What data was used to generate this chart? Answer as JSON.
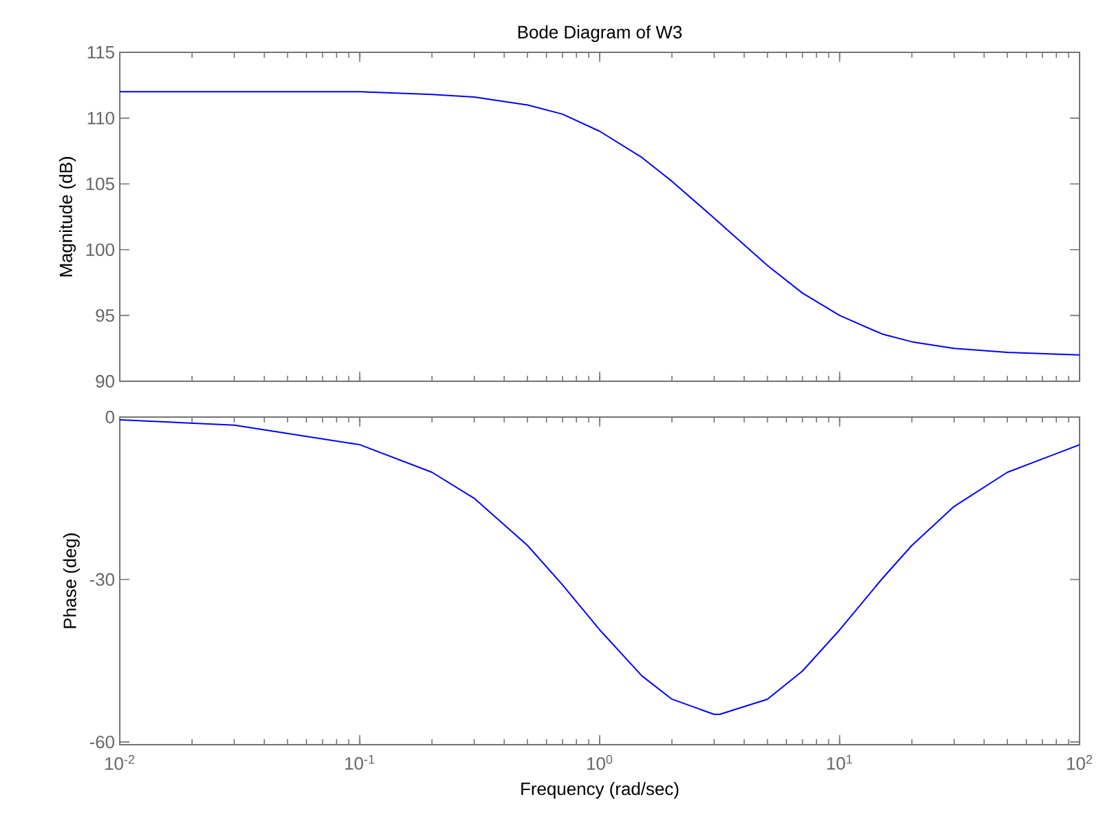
{
  "chart_data": [
    {
      "type": "line",
      "title": "Bode Diagram of W3",
      "ylabel": "Magnitude (dB)",
      "log": "x",
      "tick_labels": "y",
      "color": "#0000ff",
      "x": [
        0.01,
        0.03,
        0.1,
        0.2,
        0.3,
        0.5,
        0.7,
        1,
        1.5,
        2,
        3,
        5,
        7,
        10,
        15,
        20,
        30,
        50,
        100
      ],
      "values": [
        112.0,
        112.0,
        112.0,
        111.8,
        111.6,
        111.0,
        110.3,
        109.0,
        107.0,
        105.2,
        102.4,
        98.8,
        96.7,
        95.0,
        93.6,
        93.0,
        92.5,
        92.2,
        92.0
      ],
      "xlim": [
        0.01,
        100
      ],
      "ylim": [
        90,
        115
      ],
      "xticks": [
        0.01,
        0.1,
        1,
        10,
        100
      ],
      "yticks": [
        90,
        95,
        100,
        105,
        110,
        115
      ]
    },
    {
      "type": "line",
      "xlabel": "Frequency (rad/sec)",
      "ylabel": "Phase (deg)",
      "log": "x",
      "color": "#0000ff",
      "x": [
        0.01,
        0.03,
        0.1,
        0.2,
        0.3,
        0.5,
        0.7,
        1,
        1.5,
        2,
        3,
        3.16,
        5,
        7,
        10,
        15,
        20,
        30,
        50,
        100
      ],
      "values": [
        -0.5,
        -1.5,
        -5.1,
        -10.2,
        -15.0,
        -23.7,
        -31.0,
        -39.3,
        -47.8,
        -52.1,
        -54.9,
        -54.9,
        -52.1,
        -46.9,
        -39.3,
        -29.9,
        -23.7,
        -16.5,
        -10.2,
        -5.1
      ],
      "xlim": [
        0.01,
        100
      ],
      "ylim": [
        -60.5,
        0
      ],
      "xticks": [
        {
          "value": 0.01,
          "label": "10$^{-2}$"
        },
        {
          "value": 0.1,
          "label": "10$^{-1}$"
        },
        {
          "value": 1,
          "label": "10$^{0}$"
        },
        {
          "value": 10,
          "label": "10$^{1}$"
        },
        {
          "value": 100,
          "label": "10$^{2}$"
        }
      ],
      "yticks": [
        -60,
        -30,
        0
      ]
    }
  ]
}
